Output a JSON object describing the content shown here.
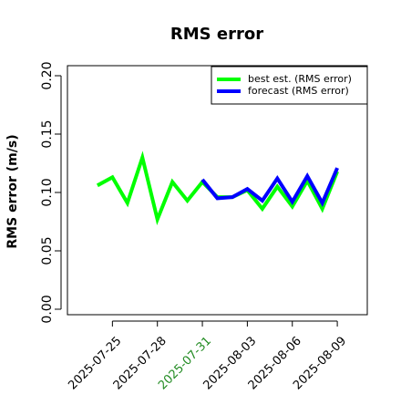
{
  "chart_data": {
    "type": "line",
    "title": "RMS error",
    "y_label": "RMS error (m/s)",
    "x": [
      "2025-07-24",
      "2025-07-25",
      "2025-07-26",
      "2025-07-27",
      "2025-07-28",
      "2025-07-29",
      "2025-07-30",
      "2025-07-31",
      "2025-08-01",
      "2025-08-02",
      "2025-08-03",
      "2025-08-04",
      "2025-08-05",
      "2025-08-06",
      "2025-08-07",
      "2025-08-08",
      "2025-08-09"
    ],
    "series": [
      {
        "name": "best est. (RMS error)",
        "color": "#00ff00",
        "values": [
          0.106,
          0.113,
          0.091,
          0.13,
          0.077,
          0.109,
          0.093,
          0.109,
          0.096,
          0.096,
          0.102,
          0.086,
          0.105,
          0.088,
          0.11,
          0.086,
          0.118
        ]
      },
      {
        "name": "forecast (RMS error)",
        "color": "#0000ff",
        "values": [
          null,
          null,
          null,
          null,
          null,
          null,
          null,
          0.111,
          0.095,
          0.096,
          0.103,
          0.093,
          0.112,
          0.092,
          0.114,
          0.091,
          0.121
        ]
      }
    ],
    "xlim": [
      "2025-07-22",
      "2025-08-11"
    ],
    "xticks": [
      "2025-07-25",
      "2025-07-28",
      "2025-07-31",
      "2025-08-03",
      "2025-08-06",
      "2025-08-09"
    ],
    "xtick_label_colors": [
      "#000000",
      "#000000",
      "#228b22",
      "#000000",
      "#000000",
      "#000000"
    ],
    "ylim": [
      -0.0047,
      0.2086
    ],
    "yticks": [
      {
        "value": 0,
        "label": "0.00"
      },
      {
        "value": 0.05,
        "label": "0.05"
      },
      {
        "value": 0.1,
        "label": "0.10"
      },
      {
        "value": 0.15,
        "label": "0.15"
      },
      {
        "value": 0.2,
        "label": "0.20"
      }
    ],
    "legend": "top-right"
  }
}
